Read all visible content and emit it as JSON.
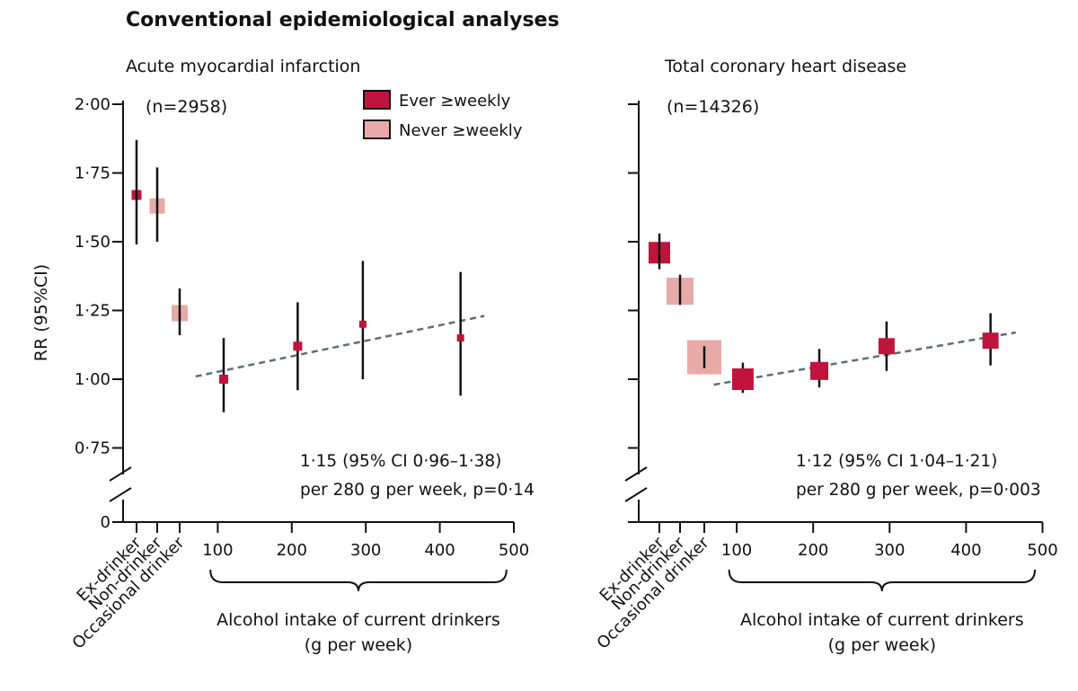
{
  "figure_title": "Conventional epidemiological analyses",
  "y_label": "RR (95%CI)",
  "y_ticks_left": [
    "2·00",
    "1·75",
    "1·50",
    "1·25",
    "1·00",
    "0·75"
  ],
  "y_zero_label": "0",
  "x_tick_labels": [
    "100",
    "200",
    "300",
    "400",
    "500"
  ],
  "category_labels": [
    "Ex-drinker",
    "Non-drinker",
    "Occasional drinker"
  ],
  "brace_label_line1": "Alcohol intake of current drinkers",
  "brace_label_line2": "(g per week)",
  "legend": {
    "ever": "Ever ≥weekly",
    "never": "Never ≥weekly"
  },
  "colors": {
    "ever": "#c0143c",
    "never": "#e8aaa8",
    "trend": "#5c6e78",
    "line": "#111111"
  },
  "chart_data": [
    {
      "type": "scatter",
      "title": "Acute myocardial infarction",
      "n_label": "(n=2958)",
      "ylabel": "RR (95%CI)",
      "ylim": [
        0.75,
        2.0
      ],
      "xlim": [
        0,
        500
      ],
      "categories": [
        {
          "name": "Ex-drinker",
          "group": "ever",
          "rr": 1.67,
          "lo": 1.49,
          "hi": 1.87
        },
        {
          "name": "Non-drinker",
          "group": "never",
          "rr": 1.63,
          "lo": 1.5,
          "hi": 1.77
        },
        {
          "name": "Occasional drinker",
          "group": "never",
          "rr": 1.24,
          "lo": 1.16,
          "hi": 1.33
        }
      ],
      "points": [
        {
          "x": 108,
          "rr": 1.0,
          "lo": 0.88,
          "hi": 1.15
        },
        {
          "x": 208,
          "rr": 1.12,
          "lo": 0.96,
          "hi": 1.28
        },
        {
          "x": 296,
          "rr": 1.2,
          "lo": 1.0,
          "hi": 1.43
        },
        {
          "x": 428,
          "rr": 1.15,
          "lo": 0.94,
          "hi": 1.39
        }
      ],
      "trend": {
        "x0": 70,
        "y0": 1.01,
        "x1": 460,
        "y1": 1.23
      },
      "annotation_line1": "1·15 (95% CI 0·96–1·38)",
      "annotation_line2": "per 280 g per week, p=0·14"
    },
    {
      "type": "scatter",
      "title": "Total coronary heart disease",
      "n_label": "(n=14326)",
      "ylabel": "",
      "ylim": [
        0.75,
        2.0
      ],
      "xlim": [
        0,
        500
      ],
      "categories": [
        {
          "name": "Ex-drinker",
          "group": "ever",
          "rr": 1.46,
          "lo": 1.4,
          "hi": 1.53
        },
        {
          "name": "Non-drinker",
          "group": "never",
          "rr": 1.32,
          "lo": 1.27,
          "hi": 1.38
        },
        {
          "name": "Occasional drinker",
          "group": "never",
          "rr": 1.08,
          "lo": 1.04,
          "hi": 1.12
        }
      ],
      "points": [
        {
          "x": 108,
          "rr": 1.0,
          "lo": 0.95,
          "hi": 1.06
        },
        {
          "x": 208,
          "rr": 1.03,
          "lo": 0.97,
          "hi": 1.11
        },
        {
          "x": 296,
          "rr": 1.12,
          "lo": 1.03,
          "hi": 1.21
        },
        {
          "x": 432,
          "rr": 1.14,
          "lo": 1.05,
          "hi": 1.24
        }
      ],
      "trend": {
        "x0": 70,
        "y0": 0.98,
        "x1": 465,
        "y1": 1.17
      },
      "annotation_line1": "1·12 (95% CI 1·04–1·21)",
      "annotation_line2": "per 280 g per week, p=0·003"
    }
  ]
}
